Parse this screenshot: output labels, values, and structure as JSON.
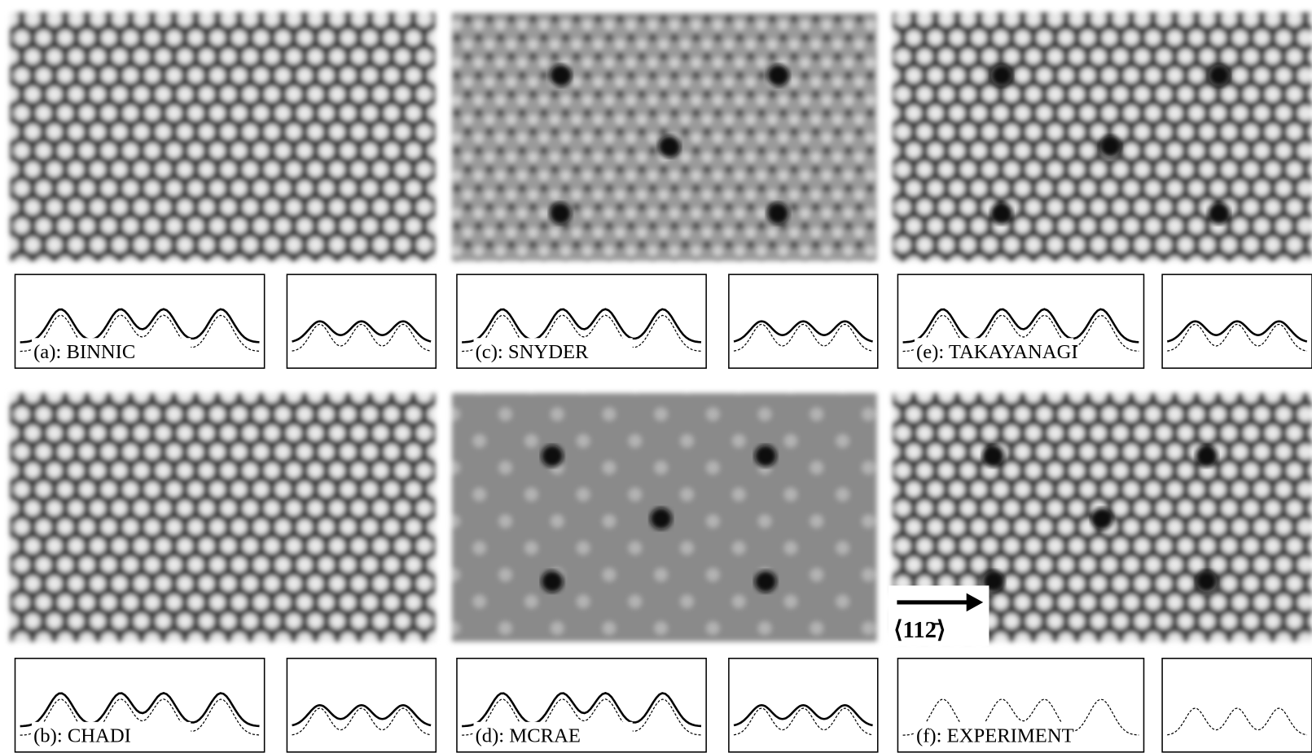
{
  "panels": [
    {
      "label": "(a): BINNIC"
    },
    {
      "label": "(c): SNYDER"
    },
    {
      "label": "(e): TAKAYANAGI"
    },
    {
      "label": "(b): CHADI"
    },
    {
      "label": "(d): MCRAE"
    },
    {
      "label": "(f): EXPERIMENT"
    }
  ],
  "direction_label": "⟨112̄⟩"
}
